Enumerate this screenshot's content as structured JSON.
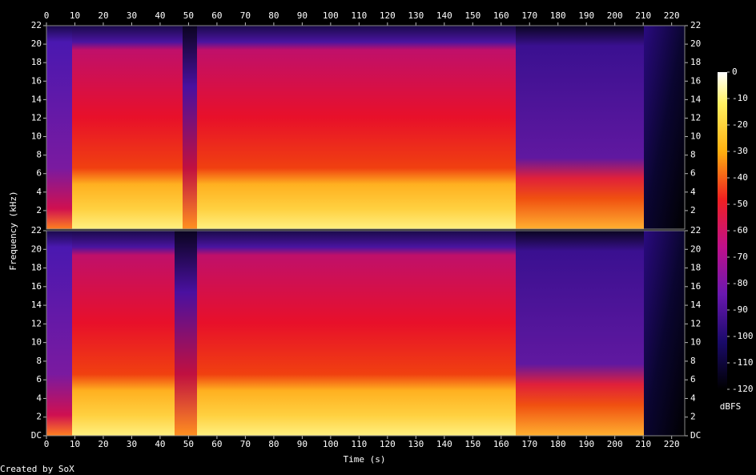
{
  "chart_data": {
    "type": "spectrogram",
    "xlabel": "Time (s)",
    "ylabel": "Frequency (kHz)",
    "xlim": [
      0,
      224.6
    ],
    "xticks": [
      0,
      10,
      20,
      30,
      40,
      50,
      60,
      70,
      80,
      90,
      100,
      110,
      120,
      130,
      140,
      150,
      160,
      170,
      180,
      190,
      200,
      210,
      220
    ],
    "channels": [
      {
        "ylim": [
          0,
          22
        ],
        "yticks": [
          2,
          4,
          6,
          8,
          10,
          12,
          14,
          16,
          18,
          20,
          22
        ]
      },
      {
        "ylim": [
          0,
          22
        ],
        "yticks": [
          {
            "value": 0,
            "label": "DC"
          },
          2,
          4,
          6,
          8,
          10,
          12,
          14,
          16,
          18,
          20,
          22
        ]
      }
    ],
    "colorbar": {
      "label": "dBFS",
      "lim": [
        -120,
        0
      ],
      "ticks": [
        0,
        -10,
        -20,
        -30,
        -40,
        -50,
        -60,
        -70,
        -80,
        -90,
        -100,
        -110,
        -120
      ]
    },
    "footer": "Created by SoX"
  }
}
